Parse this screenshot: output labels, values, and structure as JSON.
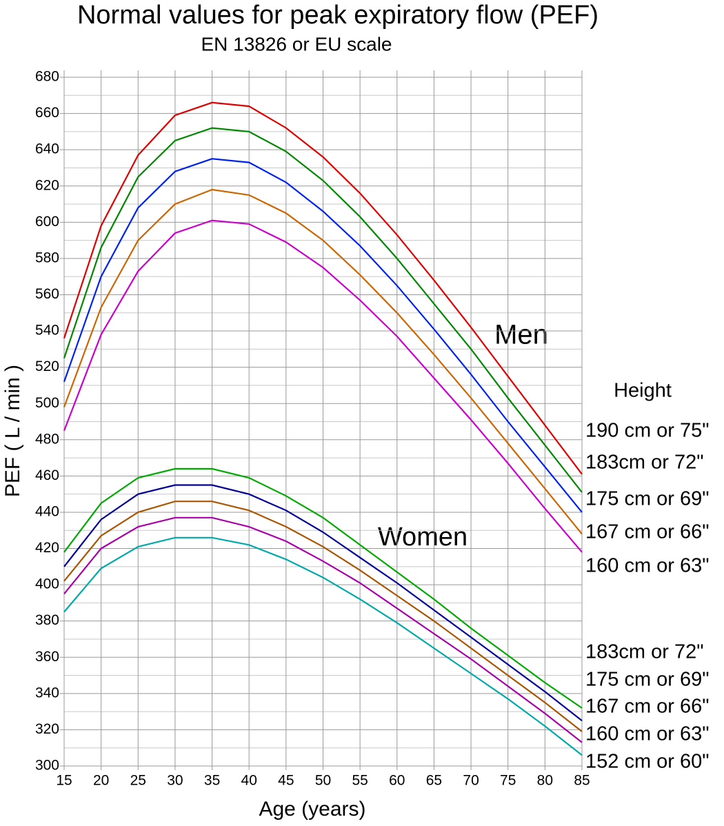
{
  "chart_data": {
    "type": "line",
    "title": "Normal values for peak expiratory flow (PEF)",
    "subtitle": "EN 13826 or EU scale",
    "x_label": "Age (years)",
    "y_label": "PEF ( L / min )",
    "legend_title": "Height",
    "annotations": [
      "Men",
      "Women"
    ],
    "x": [
      15,
      20,
      25,
      30,
      35,
      40,
      45,
      50,
      55,
      60,
      65,
      70,
      75,
      80,
      85
    ],
    "xlim": [
      15,
      85
    ],
    "ylim": [
      300,
      680
    ],
    "xticks": [
      15,
      20,
      25,
      30,
      35,
      40,
      45,
      50,
      55,
      60,
      65,
      70,
      75,
      80,
      85
    ],
    "yticks": [
      300,
      320,
      340,
      360,
      380,
      400,
      420,
      440,
      460,
      480,
      500,
      520,
      540,
      560,
      580,
      600,
      620,
      640,
      660,
      680
    ],
    "minor_yticks": [
      310,
      330,
      350,
      370,
      390,
      410,
      430,
      450,
      470,
      490,
      510,
      530,
      550,
      570,
      590,
      610,
      630,
      650,
      670
    ],
    "grid": true,
    "series": [
      {
        "name": "190 cm or 75\"",
        "color": "#e00000",
        "label_color": "#cc0000",
        "values": [
          536,
          598,
          637,
          659,
          666,
          664,
          652,
          636,
          616,
          593,
          568,
          542,
          515,
          488,
          461
        ]
      },
      {
        "name": "183cm or 72\"",
        "color": "#008800",
        "label_color": "#006600",
        "values": [
          525,
          586,
          625,
          645,
          652,
          650,
          639,
          623,
          603,
          580,
          555,
          530,
          503,
          477,
          451
        ]
      },
      {
        "name": "175 cm or 69\"",
        "color": "#0022ee",
        "label_color": "#0000cc",
        "values": [
          512,
          570,
          608,
          628,
          635,
          633,
          622,
          606,
          587,
          565,
          541,
          516,
          490,
          465,
          440
        ]
      },
      {
        "name": "167 cm or 66\"",
        "color": "#cc6600",
        "label_color": "#b04a00",
        "values": [
          498,
          553,
          590,
          610,
          618,
          615,
          605,
          590,
          571,
          550,
          527,
          503,
          478,
          453,
          428
        ]
      },
      {
        "name": "160 cm or 63\"",
        "color": "#cc00cc",
        "label_color": "#8800aa",
        "values": [
          485,
          538,
          573,
          594,
          601,
          599,
          589,
          575,
          557,
          537,
          514,
          491,
          467,
          442,
          418
        ]
      },
      {
        "name": "183cm or 72\"",
        "color": "#00aa00",
        "label_color": "#006600",
        "values": [
          418,
          445,
          459,
          464,
          464,
          459,
          449,
          437,
          422,
          407,
          392,
          376,
          361,
          346,
          332
        ]
      },
      {
        "name": "175 cm or 69\"",
        "color": "#000099",
        "label_color": "#0000cc",
        "values": [
          410,
          436,
          450,
          455,
          455,
          450,
          441,
          429,
          415,
          401,
          386,
          371,
          356,
          341,
          325
        ]
      },
      {
        "name": "167 cm or 66\"",
        "color": "#aa5500",
        "label_color": "#b04a00",
        "values": [
          402,
          427,
          440,
          446,
          446,
          441,
          432,
          421,
          408,
          394,
          380,
          365,
          350,
          335,
          319
        ]
      },
      {
        "name": "160 cm or 63\"",
        "color": "#aa00aa",
        "label_color": "#8800aa",
        "values": [
          395,
          420,
          432,
          437,
          437,
          432,
          424,
          413,
          401,
          387,
          373,
          359,
          344,
          329,
          313
        ]
      },
      {
        "name": "152 cm or 60\"",
        "color": "#00aaaa",
        "label_color": "#006666",
        "values": [
          385,
          409,
          421,
          426,
          426,
          422,
          414,
          404,
          392,
          379,
          365,
          351,
          337,
          322,
          306
        ]
      }
    ]
  }
}
